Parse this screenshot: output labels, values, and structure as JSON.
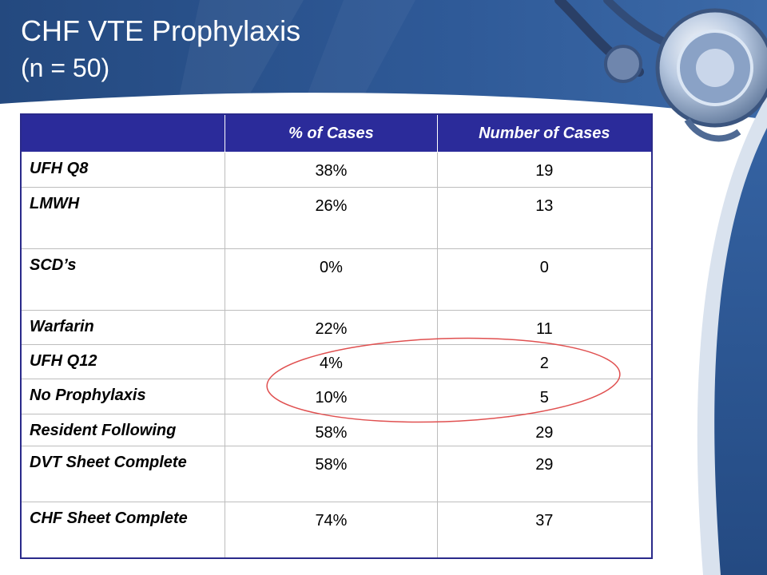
{
  "slide": {
    "title": "CHF VTE Prophylaxis",
    "subtitle": "(n = 50)",
    "colors": {
      "header_band": "#2a4f8f",
      "table_header": "#2b2b9a",
      "annotation_circle": "#e05050"
    },
    "decorations": [
      "stethoscope-image",
      "red-highlight-ellipse"
    ]
  },
  "table": {
    "headers": [
      "",
      "% of Cases",
      "Number of Cases"
    ],
    "rows": [
      {
        "label": "UFH Q8",
        "percent": "38%",
        "count": "19"
      },
      {
        "label": "LMWH",
        "percent": "26%",
        "count": "13"
      },
      {
        "label": "SCD’s",
        "percent": "0%",
        "count": "0"
      },
      {
        "label": "Warfarin",
        "percent": "22%",
        "count": "11"
      },
      {
        "label": "UFH Q12",
        "percent": "4%",
        "count": "2"
      },
      {
        "label": "No Prophylaxis",
        "percent": "10%",
        "count": "5"
      },
      {
        "label": "Resident Following",
        "percent": "58%",
        "count": "29"
      },
      {
        "label": "DVT Sheet Complete",
        "percent": "58%",
        "count": "29"
      },
      {
        "label": "CHF Sheet Complete",
        "percent": "74%",
        "count": "37"
      }
    ]
  }
}
